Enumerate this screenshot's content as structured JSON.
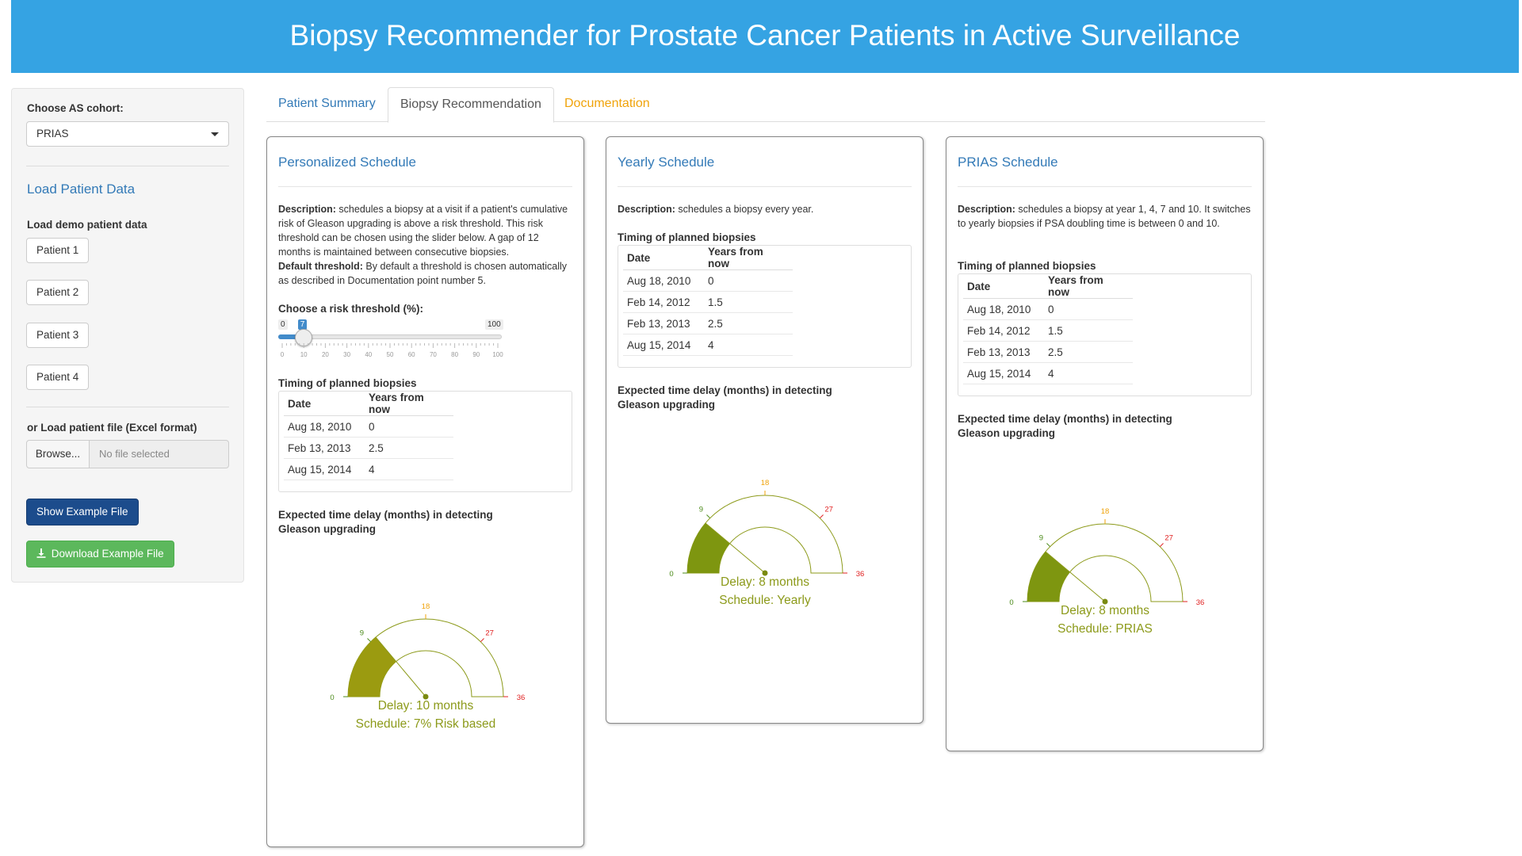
{
  "app": {
    "title": "Biopsy Recommender for Prostate Cancer Patients in Active Surveillance"
  },
  "sidebar": {
    "cohort_label": "Choose AS cohort:",
    "cohort_value": "PRIAS",
    "load_heading": "Load Patient Data",
    "demo_label": "Load demo patient data",
    "patients": [
      "Patient 1",
      "Patient 2",
      "Patient 3",
      "Patient 4"
    ],
    "file_label": "or Load patient file (Excel format)",
    "browse_label": "Browse...",
    "file_placeholder": "No file selected",
    "show_example_label": "Show Example File",
    "download_example_label": "Download Example File"
  },
  "tabs": [
    {
      "label": "Patient Summary",
      "color": "#337ab7"
    },
    {
      "label": "Biopsy Recommendation",
      "color": "#555555"
    },
    {
      "label": "Documentation",
      "color": "#f0a30a"
    }
  ],
  "panels": [
    {
      "title": "Personalized Schedule",
      "desc_bold": "Description:",
      "desc_text": " schedules a biopsy at a visit if a patient's cumulative risk of Gleason upgrading is above a risk threshold. This risk threshold can be chosen using the slider below. A gap of 12 months is maintained between consecutive biopsies.",
      "desc2_bold": "Default threshold:",
      "desc2_text": " By default a threshold is chosen automatically as described in Documentation point number 5.",
      "slider": {
        "label": "Choose a risk threshold (%):",
        "min": 0,
        "max": 100,
        "value": 7,
        "min_label": "0",
        "max_label": "100",
        "value_label": "7",
        "ticks": [
          "0",
          "10",
          "20",
          "30",
          "40",
          "50",
          "60",
          "70",
          "80",
          "90",
          "100"
        ]
      },
      "timing_label": "Timing of planned biopsies",
      "table_headers": [
        "Date",
        "Years from now"
      ],
      "rows": [
        [
          "Aug 18, 2010",
          "0"
        ],
        [
          "Feb 13, 2013",
          "2.5"
        ],
        [
          "Aug 15, 2014",
          "4"
        ]
      ],
      "delay_label": "Expected time delay (months) in detecting Gleason upgrading",
      "gauge": {
        "value": 10,
        "min": 0,
        "max": 36,
        "tick_labels": [
          "0",
          "9",
          "18",
          "27",
          "36"
        ],
        "line1": "Delay: 10 months",
        "line2": "Schedule: 7% Risk based",
        "fill_color": "#9b9b10"
      }
    },
    {
      "title": "Yearly Schedule",
      "desc_bold": "Description:",
      "desc_text": " schedules a biopsy every year.",
      "timing_label": "Timing of planned biopsies",
      "table_headers": [
        "Date",
        "Years from now"
      ],
      "rows": [
        [
          "Aug 18, 2010",
          "0"
        ],
        [
          "Feb 14, 2012",
          "1.5"
        ],
        [
          "Feb 13, 2013",
          "2.5"
        ],
        [
          "Aug 15, 2014",
          "4"
        ]
      ],
      "delay_label": "Expected time delay (months) in detecting Gleason upgrading",
      "gauge": {
        "value": 8,
        "min": 0,
        "max": 36,
        "tick_labels": [
          "0",
          "9",
          "18",
          "27",
          "36"
        ],
        "line1": "Delay: 8 months",
        "line2": "Schedule: Yearly",
        "fill_color": "#7e9610"
      }
    },
    {
      "title": "PRIAS Schedule",
      "desc_bold": "Description:",
      "desc_text": " schedules a biopsy at year 1, 4, 7 and 10. It switches to yearly biopsies if PSA doubling time is between 0 and 10.",
      "timing_label": "Timing of planned biopsies",
      "table_headers": [
        "Date",
        "Years from now"
      ],
      "rows": [
        [
          "Aug 18, 2010",
          "0"
        ],
        [
          "Feb 14, 2012",
          "1.5"
        ],
        [
          "Feb 13, 2013",
          "2.5"
        ],
        [
          "Aug 15, 2014",
          "4"
        ]
      ],
      "delay_label": "Expected time delay (months) in detecting Gleason upgrading",
      "gauge": {
        "value": 8,
        "min": 0,
        "max": 36,
        "tick_labels": [
          "0",
          "9",
          "18",
          "27",
          "36"
        ],
        "line1": "Delay: 8 months",
        "line2": "Schedule: PRIAS",
        "fill_color": "#7e9610"
      }
    }
  ],
  "colors": {
    "header": "#35a3e3",
    "link": "#337ab7",
    "gauge_text": "#8c9a1a",
    "tick_red": "#e02020",
    "tick_orange": "#f0a30a",
    "tick_green": "#4a8a18"
  }
}
